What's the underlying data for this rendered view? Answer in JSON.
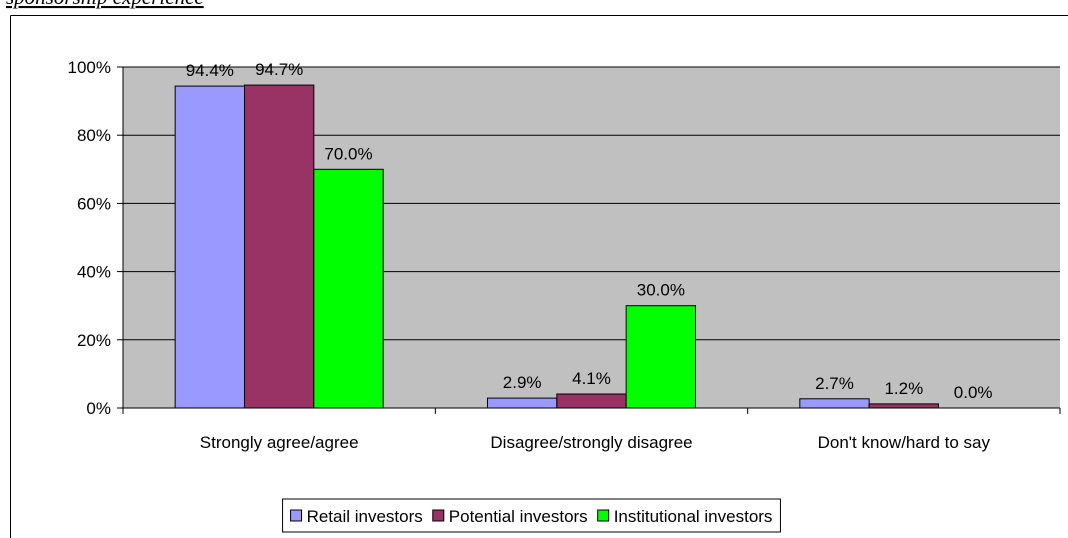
{
  "caption": "sponsorship experience",
  "chart_data": {
    "type": "bar",
    "categories": [
      "Strongly agree/agree",
      "Disagree/strongly disagree",
      "Don't know/hard to say"
    ],
    "series": [
      {
        "name": "Retail investors",
        "color": "#9999ff",
        "values": [
          94.4,
          2.9,
          2.7
        ],
        "value_labels": [
          "94.4%",
          "2.9%",
          "2.7%"
        ]
      },
      {
        "name": "Potential investors",
        "color": "#993366",
        "values": [
          94.7,
          4.1,
          1.2
        ],
        "value_labels": [
          "94.7%",
          "4.1%",
          "1.2%"
        ]
      },
      {
        "name": "Institutional investors",
        "color": "#00ff00",
        "values": [
          70.0,
          30.0,
          0.0
        ],
        "value_labels": [
          "70.0%",
          "30.0%",
          "0.0%"
        ]
      }
    ],
    "ylim": [
      0,
      100
    ],
    "yticks": [
      {
        "value": 0,
        "label": "0%"
      },
      {
        "value": 20,
        "label": "20%"
      },
      {
        "value": 40,
        "label": "40%"
      },
      {
        "value": 60,
        "label": "60%"
      },
      {
        "value": 80,
        "label": "80%"
      },
      {
        "value": 100,
        "label": "100%"
      }
    ],
    "grid": true,
    "plot_color": "#c0c0c0",
    "legend": "bottom"
  }
}
